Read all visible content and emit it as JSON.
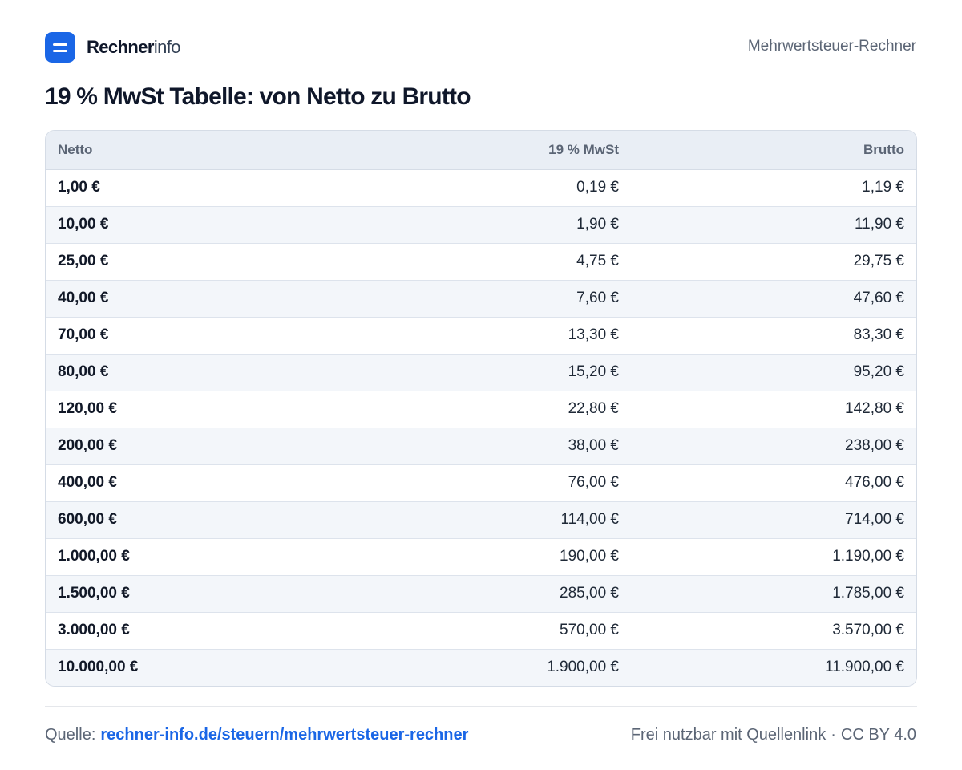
{
  "brand": {
    "name_strong": "Rechner",
    "name_light": "info"
  },
  "header": {
    "right_label": "Mehrwertsteuer-Rechner"
  },
  "title": "19 % MwSt Tabelle: von Netto zu Brutto",
  "table": {
    "headers": [
      "Netto",
      "19 % MwSt",
      "Brutto"
    ],
    "rows": [
      [
        "1,00 €",
        "0,19 €",
        "1,19 €"
      ],
      [
        "10,00 €",
        "1,90 €",
        "11,90 €"
      ],
      [
        "25,00 €",
        "4,75 €",
        "29,75 €"
      ],
      [
        "40,00 €",
        "7,60 €",
        "47,60 €"
      ],
      [
        "70,00 €",
        "13,30 €",
        "83,30 €"
      ],
      [
        "80,00 €",
        "15,20 €",
        "95,20 €"
      ],
      [
        "120,00 €",
        "22,80 €",
        "142,80 €"
      ],
      [
        "200,00 €",
        "38,00 €",
        "238,00 €"
      ],
      [
        "400,00 €",
        "76,00 €",
        "476,00 €"
      ],
      [
        "600,00 €",
        "114,00 €",
        "714,00 €"
      ],
      [
        "1.000,00 €",
        "190,00 €",
        "1.190,00 €"
      ],
      [
        "1.500,00 €",
        "285,00 €",
        "1.785,00 €"
      ],
      [
        "3.000,00 €",
        "570,00 €",
        "3.570,00 €"
      ],
      [
        "10.000,00 €",
        "1.900,00 €",
        "11.900,00 €"
      ]
    ]
  },
  "footer": {
    "source_label": "Quelle:",
    "source_link": "rechner-info.de/steuern/mehrwertsteuer-rechner",
    "license_text": "Frei nutzbar mit Quellenlink",
    "separator": "·",
    "license": "CC BY 4.0"
  },
  "colors": {
    "accent": "#1a66e6",
    "header_bg": "#e9eef5",
    "stripe": "#f3f6fa"
  }
}
